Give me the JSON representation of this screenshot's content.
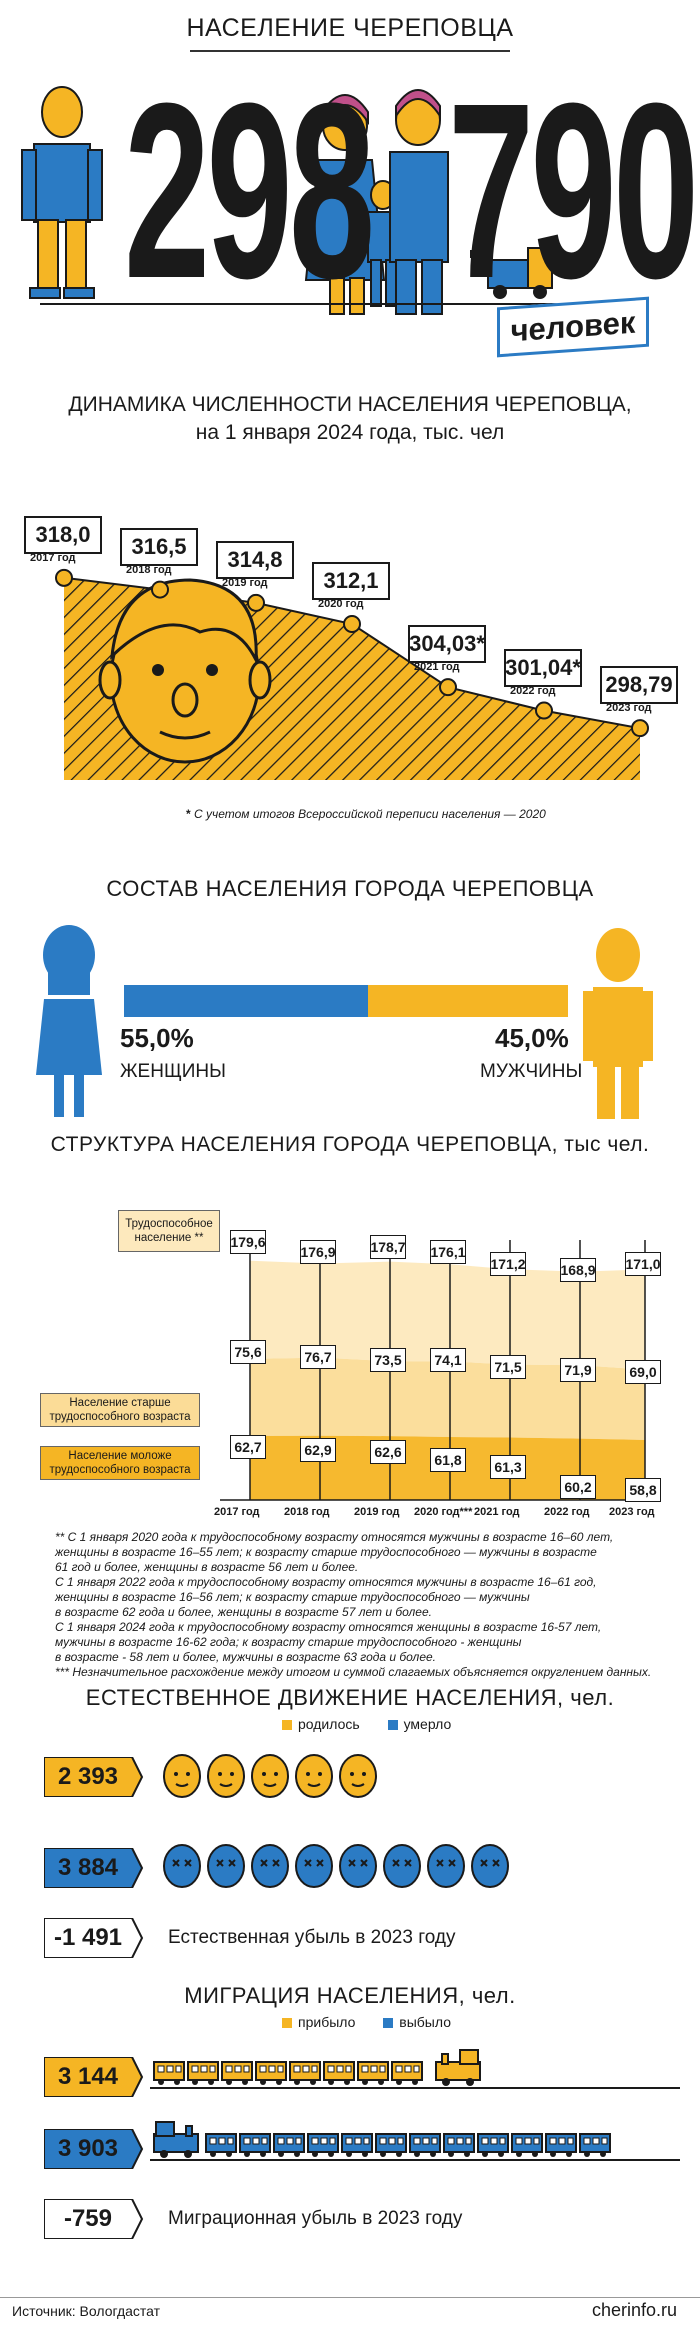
{
  "header": {
    "title": "НАСЕЛЕНИЕ ЧЕРЕПОВЦА",
    "big_number_left": "298",
    "big_number_right": "790",
    "unit": "человек"
  },
  "dynamics": {
    "title_line1": "ДИНАМИКА ЧИСЛЕННОСТИ НАСЕЛЕНИЯ ЧЕРЕПОВЦА,",
    "title_line2": "на 1 января 2024 года, тыс. чел",
    "footnote": "С учетом итогов Всероссийской переписи населения — 2020",
    "footnote_mark": "*",
    "points": [
      {
        "value": "318,0",
        "year": "2017 год"
      },
      {
        "value": "316,5",
        "year": "2018 год"
      },
      {
        "value": "314,8",
        "year": "2019 год"
      },
      {
        "value": "312,1",
        "year": "2020 год"
      },
      {
        "value": "304,03*",
        "year": "2021 год"
      },
      {
        "value": "301,04*",
        "year": "2022 год"
      },
      {
        "value": "298,79",
        "year": "2023 год"
      }
    ]
  },
  "composition": {
    "title": "СОСТАВ НАСЕЛЕНИЯ ГОРОДА ЧЕРЕПОВЦА",
    "women_pct": "55,0%",
    "women_label": "ЖЕНЩИНЫ",
    "men_pct": "45,0%",
    "men_label": "МУЖЧИНЫ",
    "women_share": 55.0
  },
  "structure": {
    "title": "СТРУКТУРА НАСЕЛЕНИЯ ГОРОДА ЧЕРЕПОВЦА, тыс чел.",
    "legend_working": "Трудоспособное население **",
    "legend_older": "Население старше трудоспособного возраста",
    "legend_younger": "Население моложе трудоспособного возраста",
    "notes": [
      "** С 1 января 2020 года к трудоспособному возрасту относятся мужчины в возрасте 16–60 лет,",
      "женщины в возрасте 16–55 лет; к возрасту старше трудоспособного — мужчины в возрасте",
      "61 год и более, женщины в возрасте 56 лет и более.",
      "С 1 января 2022 года к трудоспособному возрасту относятся мужчины в возрасте 16–61 год,",
      "женщины в возрасте 16–56 лет; к возрасту старше трудоспособного — мужчины",
      "в возрасте 62 года и более, женщины в возрасте 57 лет и более.",
      "С 1 января 2024 года к трудоспособному возрасту относятся женщины в возрасте 16-57 лет,",
      "мужчины в возрасте 16-62 года; к возрасту старше трудоспособного - женщины",
      "в возрасте - 58 лет и более, мужчины в возрасте 63 года и более.",
      "*** Незначительное расхождение между итогом и суммой слагаемых объясняется округлением данных."
    ]
  },
  "natural": {
    "title": "ЕСТЕСТВЕННОЕ ДВИЖЕНИЕ НАСЕЛЕНИЯ, чел.",
    "legend_born": "родилось",
    "legend_died": "умерло",
    "born": "2 393",
    "died": "3 884",
    "balance": "-1 491",
    "balance_caption": "Естественная убыль в 2023 году"
  },
  "migration": {
    "title": "МИГРАЦИЯ НАСЕЛЕНИЯ, чел.",
    "legend_in": "прибыло",
    "legend_out": "выбыло",
    "arrived": "3 144",
    "left": "3 903",
    "balance": "-759",
    "balance_caption": "Миграционная убыль в 2023 году"
  },
  "footer": {
    "source": "Источник: Вологдастат",
    "site": "cherinfo.ru"
  },
  "colors": {
    "yellow": "#f5b524",
    "light_yellow": "#fbdc97",
    "pale_yellow": "#fde9bd",
    "blue": "#2b7bc4",
    "dark": "#1a1a1a"
  },
  "chart_data": [
    {
      "type": "area",
      "title": "ДИНАМИКА ЧИСЛЕННОСТИ НАСЕЛЕНИЯ ЧЕРЕПОВЦА,",
      "categories": [
        "2017 год",
        "2018 год",
        "2019 год",
        "2020 год",
        "2021 год",
        "2022 год",
        "2023 год"
      ],
      "values": [
        318.0,
        316.5,
        314.8,
        312.1,
        304.03,
        301.04,
        298.79
      ]
    },
    {
      "type": "bar",
      "title": "СОСТАВ НАСЕЛЕНИЯ ГОРОДА ЧЕРЕПОВЦА",
      "categories": [
        "ЖЕНЩИНЫ",
        "МУЖЧИНЫ"
      ],
      "values": [
        55.0,
        45.0
      ]
    },
    {
      "type": "area",
      "title": "СТРУКТУРА НАСЕЛЕНИЯ ГОРОДА ЧЕРЕПОВЦА, тыс чел.",
      "categories": [
        "2017 год",
        "2018 год",
        "2019 год",
        "2020 год***",
        "2021 год",
        "2022 год",
        "2023 год"
      ],
      "series": [
        {
          "name": "Трудоспособное население **",
          "values": [
            179.6,
            176.9,
            178.7,
            176.1,
            171.2,
            168.9,
            171.0
          ]
        },
        {
          "name": "Население старше трудоспособного возраста",
          "values": [
            75.6,
            76.7,
            73.5,
            74.1,
            71.5,
            71.9,
            69.0
          ]
        },
        {
          "name": "Население моложе трудоспособного возраста",
          "values": [
            62.7,
            62.9,
            62.6,
            61.8,
            61.3,
            60.2,
            58.8
          ]
        }
      ]
    }
  ]
}
